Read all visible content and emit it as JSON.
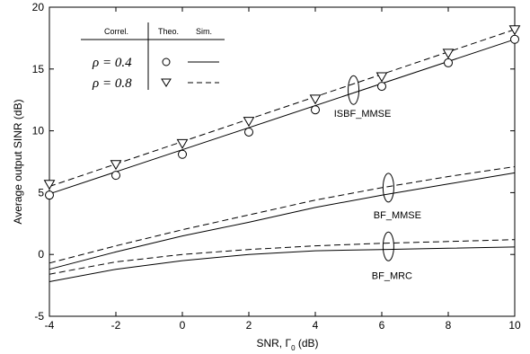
{
  "chart_data": {
    "type": "line",
    "xlabel_main": "SNR, Γ",
    "xlabel_sub": "0",
    "xlabel_unit": "(dB)",
    "ylabel": "Average output SINR (dB)",
    "xlim": [
      -4,
      10
    ],
    "ylim": [
      -5,
      20
    ],
    "xticks": [
      "-4",
      "-2",
      "0",
      "2",
      "4",
      "6",
      "8",
      "10"
    ],
    "yticks": [
      "-5",
      "0",
      "5",
      "10",
      "15",
      "20"
    ],
    "grid": false,
    "legend": {
      "placement": "top-left",
      "header_correl": "Correl.",
      "header_theo": "Theo.",
      "header_sim": "Sim.",
      "rows": [
        {
          "label": "ρ = 0.4",
          "marker": "circle",
          "line": "solid"
        },
        {
          "label": "ρ = 0.8",
          "marker": "triangle-down",
          "line": "dashed"
        }
      ]
    },
    "group_labels": [
      {
        "text": "ISBF_MMSE",
        "x": 5.15,
        "y": 13.3
      },
      {
        "text": "BF_MMSE",
        "x": 6.2,
        "y": 5.4
      },
      {
        "text": "BF_MRC",
        "x": 6.2,
        "y": 0.65
      }
    ],
    "series": [
      {
        "group": "ISBF_MMSE",
        "rho": "0.4",
        "kind": "simulation",
        "style": "solid",
        "x": [
          -4,
          10
        ],
        "y": [
          4.9,
          17.4
        ]
      },
      {
        "group": "ISBF_MMSE",
        "rho": "0.8",
        "kind": "simulation",
        "style": "dashed",
        "x": [
          -4,
          10
        ],
        "y": [
          5.5,
          18.2
        ]
      },
      {
        "group": "ISBF_MMSE",
        "rho": "0.4",
        "kind": "theory",
        "marker": "circle",
        "x": [
          -4,
          -2,
          0,
          2,
          4,
          6,
          8,
          10
        ],
        "y": [
          4.8,
          6.4,
          8.1,
          9.9,
          11.7,
          13.6,
          15.5,
          17.4
        ]
      },
      {
        "group": "ISBF_MMSE",
        "rho": "0.8",
        "kind": "theory",
        "marker": "triangle-down",
        "x": [
          -4,
          -2,
          0,
          2,
          4,
          6,
          8,
          10
        ],
        "y": [
          5.7,
          7.3,
          9.0,
          10.8,
          12.6,
          14.4,
          16.3,
          18.2
        ]
      },
      {
        "group": "BF_MMSE",
        "rho": "0.4",
        "kind": "simulation",
        "style": "solid",
        "x": [
          -4,
          -2,
          0,
          2,
          4,
          6,
          8,
          10
        ],
        "y": [
          -1.2,
          0.2,
          1.5,
          2.6,
          3.8,
          4.8,
          5.7,
          6.6
        ]
      },
      {
        "group": "BF_MMSE",
        "rho": "0.8",
        "kind": "simulation",
        "style": "dashed",
        "x": [
          -4,
          -2,
          0,
          2,
          4,
          6,
          8,
          10
        ],
        "y": [
          -0.7,
          0.7,
          2.0,
          3.2,
          4.4,
          5.4,
          6.3,
          7.1
        ]
      },
      {
        "group": "BF_MRC",
        "rho": "0.4",
        "kind": "simulation",
        "style": "solid",
        "x": [
          -4,
          -2,
          0,
          2,
          4,
          6,
          8,
          10
        ],
        "y": [
          -2.2,
          -1.2,
          -0.5,
          0.0,
          0.3,
          0.4,
          0.5,
          0.6
        ]
      },
      {
        "group": "BF_MRC",
        "rho": "0.8",
        "kind": "simulation",
        "style": "dashed",
        "x": [
          -4,
          -2,
          0,
          2,
          4,
          6,
          8,
          10
        ],
        "y": [
          -1.6,
          -0.6,
          0.0,
          0.4,
          0.7,
          0.9,
          1.05,
          1.2
        ]
      }
    ]
  }
}
